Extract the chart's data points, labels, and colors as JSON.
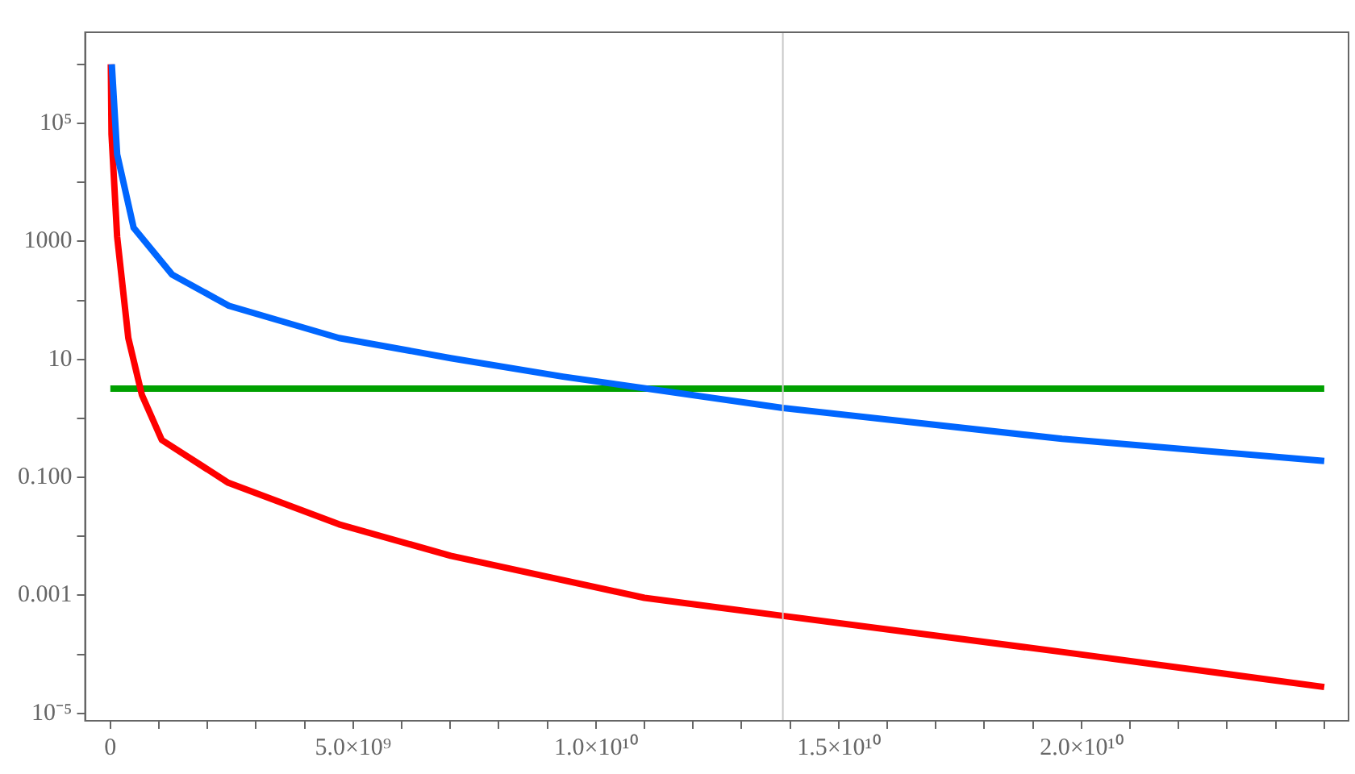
{
  "chart_data": {
    "type": "line",
    "xlim": [
      -520000000,
      25500000000
    ],
    "xticks": [
      0,
      {
        "value": 1000000000,
        "label": null
      },
      {
        "value": 2000000000,
        "label": null
      },
      {
        "value": 3000000000,
        "label": null
      },
      {
        "value": 4000000000,
        "label": null
      },
      {
        "value": 5000000000,
        "label": "5.0×10⁹"
      },
      {
        "value": 6000000000,
        "label": null
      },
      {
        "value": 7000000000,
        "label": null
      },
      {
        "value": 8000000000,
        "label": null
      },
      {
        "value": 9000000000,
        "label": null
      },
      {
        "value": 10000000000,
        "label": "1.0×10¹⁰"
      },
      {
        "value": 11000000000,
        "label": null
      },
      {
        "value": 12000000000,
        "label": null
      },
      {
        "value": 13000000000,
        "label": null
      },
      {
        "value": 14000000000,
        "label": null
      },
      {
        "value": 15000000000,
        "label": "1.5×10¹⁰"
      },
      {
        "value": 16000000000,
        "label": null
      },
      {
        "value": 17000000000,
        "label": null
      },
      {
        "value": 18000000000,
        "label": null
      },
      {
        "value": 19000000000,
        "label": null
      },
      {
        "value": 20000000000,
        "label": "2.0×10¹⁰"
      },
      {
        "value": 21000000000,
        "label": null
      },
      {
        "value": 22000000000,
        "label": null
      },
      {
        "value": 23000000000,
        "label": null
      },
      {
        "value": 24000000000,
        "label": null
      },
      {
        "value": 25000000000,
        "label": null
      }
    ],
    "ylim": [
      7.5e-06,
      3500000
    ],
    "yticks": [
      {
        "value": 1e-05,
        "label": "10⁻⁵"
      },
      {
        "value": 0.0001,
        "label": null
      },
      0.001,
      {
        "value": 0.01,
        "label": null
      },
      {
        "value": 0.1,
        "label": "0.100"
      },
      {
        "value": 1,
        "label": null
      },
      10,
      {
        "value": 100,
        "label": null
      },
      1000,
      {
        "value": 10000,
        "label": null
      },
      {
        "value": 100000,
        "label": "10⁵"
      },
      {
        "value": 1000000,
        "label": null
      }
    ],
    "log": "y",
    "grid": false,
    "legend": false,
    "marker": "none",
    "line_style": "solid",
    "ref_lines": [
      {
        "axis": "x",
        "value": 13850000000,
        "label": null,
        "color": "#c8c8c8"
      }
    ],
    "series": [
      {
        "color": "#0066ff",
        "x": [
          30000000,
          140000000,
          480000000,
          1270000000,
          2440000000,
          4710000000,
          7010000000,
          9320000000,
          13850000000,
          19600000000,
          25000000000
        ],
        "values": [
          1000000,
          30000,
          1700,
          275,
          81,
          23,
          10.5,
          5.1,
          1.5,
          0.45,
          0.19
        ]
      },
      {
        "color": "#ff0000",
        "x": [
          10000000,
          24000000,
          140000000,
          370000000,
          650000000,
          1060000000,
          2430000000,
          4710000000,
          7010000000,
          11000000000,
          13850000000,
          19600000000,
          25000000000
        ],
        "values": [
          1000000,
          66000,
          1200,
          23,
          2.5,
          0.43,
          0.081,
          0.016,
          0.0047,
          0.00091,
          0.00045,
          0.00011,
          2.8e-05
        ]
      },
      {
        "color": "#00a000",
        "x": [
          0,
          25000000000
        ],
        "values": [
          3.2,
          3.2
        ]
      }
    ]
  }
}
